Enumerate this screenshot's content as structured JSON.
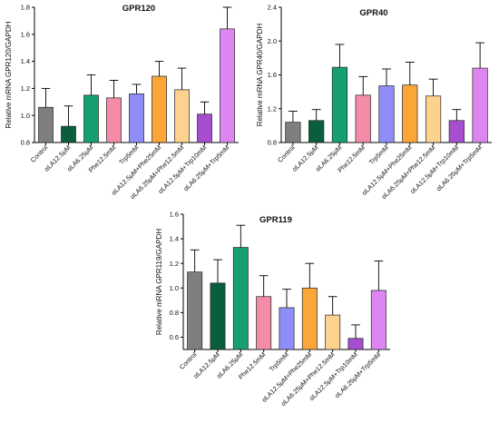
{
  "chart_data": [
    {
      "type": "bar",
      "title": "GPR120",
      "ylabel": "Relative mRNA GPR120/GAPDH",
      "ylim": [
        0.8,
        1.8
      ],
      "yticks": [
        "0.8",
        "1.0",
        "1.2",
        "1.4",
        "1.6",
        "1.8"
      ],
      "categories": [
        "Control",
        "αLA12.5μM",
        "αLA6.25μM",
        "Phe12.5mM",
        "Trp5mM",
        "αLA12.5μM+Phe25mM",
        "αLA6.25μM+Phe12.5mM",
        "αLA12.5μM+Trp10mM",
        "αLA6.25μM+Trp5mM"
      ],
      "values": [
        1.06,
        0.92,
        1.15,
        1.13,
        1.16,
        1.29,
        1.19,
        1.01,
        1.64
      ],
      "errors": [
        0.14,
        0.15,
        0.15,
        0.13,
        0.07,
        0.11,
        0.16,
        0.09,
        0.16
      ],
      "colors": [
        "#7f7f7f",
        "#0b5e3d",
        "#16a070",
        "#f48ca8",
        "#8f8dfa",
        "#fca63a",
        "#fdd28f",
        "#a64ecf",
        "#dd86f2"
      ],
      "grid": false,
      "legend": "none"
    },
    {
      "type": "bar",
      "title": "GPR40",
      "ylabel": "Relative mRNA GPR40/GAPDH",
      "ylim": [
        0.8,
        2.4
      ],
      "yticks": [
        "0.8",
        "1.2",
        "1.6",
        "2.0",
        "2.4"
      ],
      "categories": [
        "Control",
        "αLA12.5μM",
        "αLA6.25μM",
        "Phe12.5mM",
        "Trp5mM",
        "αLA12.5μM+Phe25mM",
        "αLA6.25μM+Phe12.5mM",
        "αLA12.5μM+Trp10mM",
        "αLA6.25μM+Trp5mM"
      ],
      "values": [
        1.04,
        1.06,
        1.69,
        1.36,
        1.47,
        1.48,
        1.35,
        1.06,
        1.68
      ],
      "errors": [
        0.13,
        0.13,
        0.27,
        0.22,
        0.2,
        0.27,
        0.2,
        0.13,
        0.3
      ],
      "colors": [
        "#7f7f7f",
        "#0b5e3d",
        "#16a070",
        "#f48ca8",
        "#8f8dfa",
        "#fca63a",
        "#fdd28f",
        "#a64ecf",
        "#dd86f2"
      ],
      "grid": false,
      "legend": "none"
    },
    {
      "type": "bar",
      "title": "GPR119",
      "ylabel": "Relative mRNA GPR119/GAPDH",
      "ylim": [
        0.5,
        1.6
      ],
      "yticks": [
        "0.6",
        "0.8",
        "1.0",
        "1.2",
        "1.4",
        "1.6"
      ],
      "categories": [
        "Control",
        "αLA12.5μM",
        "αLA6.25μM",
        "Phe12.5mM",
        "Trp5mM",
        "αLA12.5μM+Phe25mM",
        "αLA6.25μM+Phe12.5mM",
        "αLA12.5μM+Trp10mM",
        "αLA6.25μM+Trp5mM"
      ],
      "values": [
        1.13,
        1.04,
        1.33,
        0.93,
        0.84,
        1.0,
        0.78,
        0.59,
        0.98
      ],
      "errors": [
        0.18,
        0.19,
        0.18,
        0.17,
        0.15,
        0.2,
        0.15,
        0.11,
        0.24
      ],
      "colors": [
        "#7f7f7f",
        "#0b5e3d",
        "#16a070",
        "#f48ca8",
        "#8f8dfa",
        "#fca63a",
        "#fdd28f",
        "#a64ecf",
        "#dd86f2"
      ],
      "grid": false,
      "legend": "none"
    }
  ]
}
